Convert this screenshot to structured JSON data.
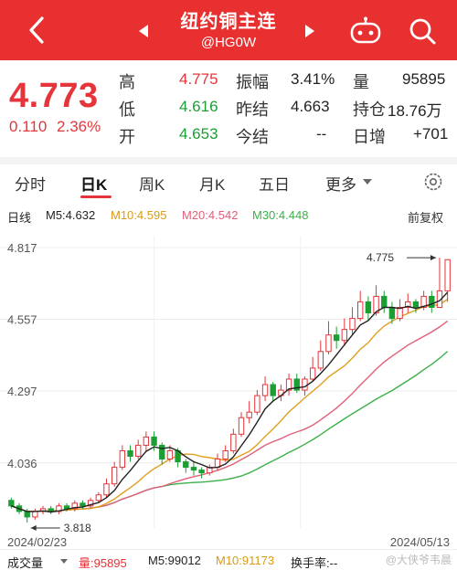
{
  "header": {
    "title": "纽约铜主连",
    "code": "@HG0W",
    "bg_color": "#e93030"
  },
  "quote": {
    "price": "4.773",
    "change": "0.110",
    "change_pct": "2.36%",
    "rows": [
      {
        "l1": "高",
        "v1": "4.775",
        "l2": "振幅",
        "v2": "3.41%",
        "l3": "量",
        "v3": "95895"
      },
      {
        "l1": "低",
        "v1": "4.616",
        "l2": "昨结",
        "v2": "4.663",
        "l3": "持仓",
        "v3": "18.76万"
      },
      {
        "l1": "开",
        "v1": "4.653",
        "l2": "今结",
        "v2": "--",
        "l3": "日增",
        "v3": "+701"
      }
    ]
  },
  "tabs": [
    "分时",
    "日K",
    "周K",
    "月K",
    "五日",
    "更多"
  ],
  "active_tab": "日K",
  "ma": {
    "label": "日线",
    "m5": "M5:4.632",
    "m10": "M10:4.595",
    "m20": "M20:4.542",
    "m30": "M30:4.448",
    "adjust": "前复权",
    "colors": {
      "m5": "#222222",
      "m10": "#e0a020",
      "m20": "#e0607a",
      "m30": "#3cb04a"
    }
  },
  "chart_data": {
    "type": "candlestick",
    "y_ticks": [
      "4.817",
      "4.557",
      "4.297",
      "4.036"
    ],
    "ylim": [
      3.8,
      4.86
    ],
    "date_start": "2024/02/23",
    "date_end": "2024/05/13",
    "max_label": "4.775",
    "min_label": "3.818",
    "up_color": "#e5343a",
    "down_color": "#1b9f34",
    "candles": [
      [
        3.9,
        3.88,
        3.91,
        3.87
      ],
      [
        3.88,
        3.86,
        3.89,
        3.85
      ],
      [
        3.86,
        3.84,
        3.87,
        3.82
      ],
      [
        3.84,
        3.86,
        3.87,
        3.83
      ],
      [
        3.86,
        3.87,
        3.88,
        3.85
      ],
      [
        3.87,
        3.86,
        3.88,
        3.85
      ],
      [
        3.86,
        3.88,
        3.89,
        3.85
      ],
      [
        3.88,
        3.87,
        3.89,
        3.86
      ],
      [
        3.87,
        3.89,
        3.9,
        3.86
      ],
      [
        3.89,
        3.88,
        3.9,
        3.87
      ],
      [
        3.88,
        3.9,
        3.91,
        3.87
      ],
      [
        3.9,
        3.92,
        3.93,
        3.89
      ],
      [
        3.92,
        3.96,
        3.98,
        3.91
      ],
      [
        3.96,
        4.02,
        4.04,
        3.95
      ],
      [
        4.02,
        4.08,
        4.1,
        4.01
      ],
      [
        4.08,
        4.06,
        4.1,
        4.04
      ],
      [
        4.06,
        4.1,
        4.12,
        4.05
      ],
      [
        4.1,
        4.13,
        4.15,
        4.08
      ],
      [
        4.13,
        4.1,
        4.15,
        4.08
      ],
      [
        4.1,
        4.05,
        4.11,
        4.03
      ],
      [
        4.05,
        4.08,
        4.1,
        4.04
      ],
      [
        4.08,
        4.04,
        4.09,
        4.02
      ],
      [
        4.04,
        4.02,
        4.05,
        4.0
      ],
      [
        4.02,
        4.01,
        4.04,
        3.99
      ],
      [
        4.01,
        4.0,
        4.02,
        3.98
      ],
      [
        4.0,
        4.02,
        4.03,
        3.99
      ],
      [
        4.02,
        4.05,
        4.07,
        4.01
      ],
      [
        4.05,
        4.08,
        4.1,
        4.04
      ],
      [
        4.08,
        4.14,
        4.16,
        4.07
      ],
      [
        4.14,
        4.2,
        4.22,
        4.13
      ],
      [
        4.2,
        4.22,
        4.26,
        4.18
      ],
      [
        4.22,
        4.28,
        4.3,
        4.21
      ],
      [
        4.28,
        4.32,
        4.35,
        4.26
      ],
      [
        4.32,
        4.28,
        4.33,
        4.26
      ],
      [
        4.28,
        4.3,
        4.32,
        4.26
      ],
      [
        4.3,
        4.34,
        4.36,
        4.28
      ],
      [
        4.34,
        4.3,
        4.36,
        4.29
      ],
      [
        4.3,
        4.34,
        4.35,
        4.28
      ],
      [
        4.34,
        4.38,
        4.42,
        4.33
      ],
      [
        4.38,
        4.44,
        4.48,
        4.37
      ],
      [
        4.44,
        4.5,
        4.55,
        4.43
      ],
      [
        4.5,
        4.48,
        4.53,
        4.45
      ],
      [
        4.48,
        4.52,
        4.56,
        4.46
      ],
      [
        4.52,
        4.56,
        4.6,
        4.5
      ],
      [
        4.56,
        4.62,
        4.66,
        4.55
      ],
      [
        4.62,
        4.58,
        4.64,
        4.55
      ],
      [
        4.58,
        4.64,
        4.68,
        4.57
      ],
      [
        4.64,
        4.6,
        4.66,
        4.58
      ],
      [
        4.6,
        4.56,
        4.62,
        4.54
      ],
      [
        4.56,
        4.6,
        4.63,
        4.55
      ],
      [
        4.6,
        4.62,
        4.65,
        4.58
      ],
      [
        4.62,
        4.6,
        4.63,
        4.58
      ],
      [
        4.6,
        4.64,
        4.66,
        4.59
      ],
      [
        4.64,
        4.6,
        4.66,
        4.58
      ],
      [
        4.6,
        4.66,
        4.78,
        4.6
      ],
      [
        4.66,
        4.773,
        4.775,
        4.62
      ]
    ]
  },
  "volume": {
    "label": "成交量",
    "vol": "量:95895",
    "m5": "M5:99012",
    "m10": "M10:91173",
    "turnover": "换手率:--"
  },
  "watermark": "@大侠爷韦晨"
}
